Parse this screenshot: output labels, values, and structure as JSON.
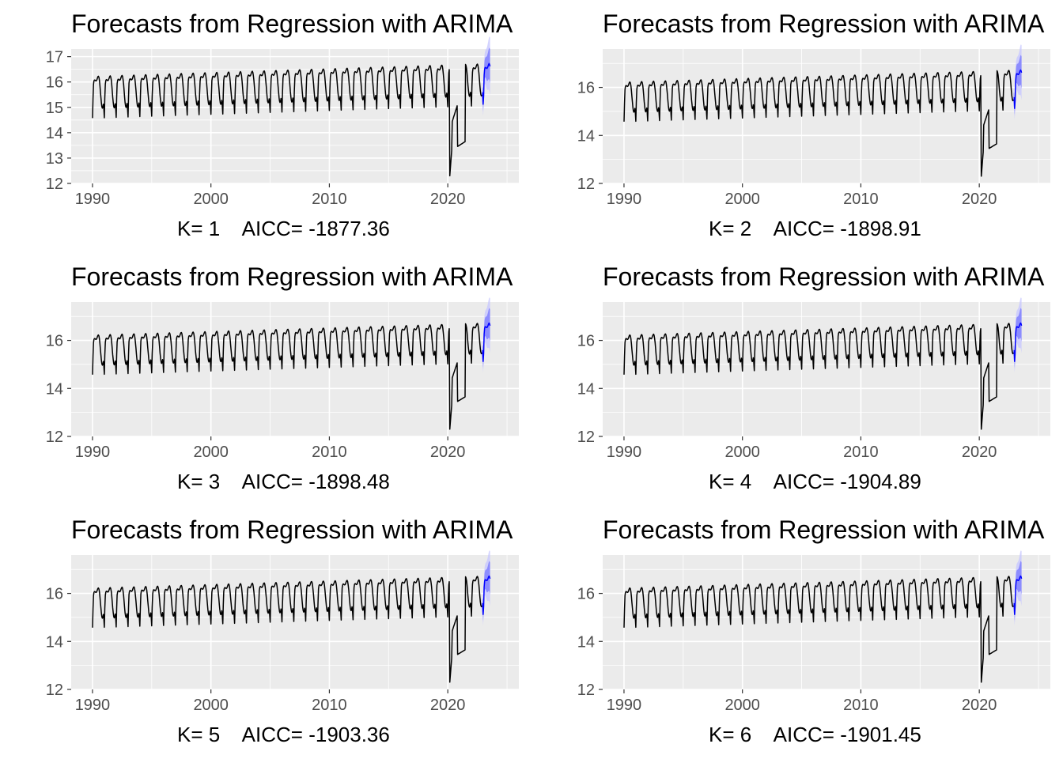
{
  "colors": {
    "panel_bg": "#ebebeb",
    "grid": "#ffffff",
    "series": "#000000",
    "forecast": "#0000ff",
    "interval_80": "#7b7bff",
    "interval_95": "#c8c8ff"
  },
  "chart_data": [
    {
      "type": "line",
      "title": "Forecasts from Regression with ARIMA",
      "caption": "K= 1    AICC= -1877.36",
      "k": 1,
      "aicc": -1877.36,
      "x_range": [
        1990,
        2023.6
      ],
      "xlim": [
        1988.2,
        2026.0
      ],
      "x_ticks": [
        1990,
        2000,
        2010,
        2020
      ],
      "ylim": [
        12.0,
        17.3
      ],
      "y_ticks": [
        12,
        13,
        14,
        15,
        16,
        17
      ],
      "grid": true,
      "history_end": 2022.9,
      "forecast_start": 2022.9,
      "forecast_end": 2023.6
    },
    {
      "type": "line",
      "title": "Forecasts from Regression with ARIMA",
      "caption": "K= 2    AICC= -1898.91",
      "k": 2,
      "aicc": -1898.91,
      "x_range": [
        1990,
        2023.6
      ],
      "xlim": [
        1988.2,
        2026.0
      ],
      "x_ticks": [
        1990,
        2000,
        2010,
        2020
      ],
      "ylim": [
        12.0,
        17.6
      ],
      "y_ticks": [
        12,
        14,
        16
      ],
      "grid": true,
      "history_end": 2022.9,
      "forecast_start": 2022.9,
      "forecast_end": 2023.6
    },
    {
      "type": "line",
      "title": "Forecasts from Regression with ARIMA",
      "caption": "K= 3    AICC= -1898.48",
      "k": 3,
      "aicc": -1898.48,
      "x_range": [
        1990,
        2023.6
      ],
      "xlim": [
        1988.2,
        2026.0
      ],
      "x_ticks": [
        1990,
        2000,
        2010,
        2020
      ],
      "ylim": [
        12.0,
        17.6
      ],
      "y_ticks": [
        12,
        14,
        16
      ],
      "grid": true,
      "history_end": 2022.9,
      "forecast_start": 2022.9,
      "forecast_end": 2023.6
    },
    {
      "type": "line",
      "title": "Forecasts from Regression with ARIMA",
      "caption": "K= 4    AICC= -1904.89",
      "k": 4,
      "aicc": -1904.89,
      "x_range": [
        1990,
        2023.6
      ],
      "xlim": [
        1988.2,
        2026.0
      ],
      "x_ticks": [
        1990,
        2000,
        2010,
        2020
      ],
      "ylim": [
        12.0,
        17.6
      ],
      "y_ticks": [
        12,
        14,
        16
      ],
      "grid": true,
      "history_end": 2022.9,
      "forecast_start": 2022.9,
      "forecast_end": 2023.6
    },
    {
      "type": "line",
      "title": "Forecasts from Regression with ARIMA",
      "caption": "K= 5    AICC= -1903.36",
      "k": 5,
      "aicc": -1903.36,
      "x_range": [
        1990,
        2023.6
      ],
      "xlim": [
        1988.2,
        2026.0
      ],
      "x_ticks": [
        1990,
        2000,
        2010,
        2020
      ],
      "ylim": [
        12.0,
        17.6
      ],
      "y_ticks": [
        12,
        14,
        16
      ],
      "grid": true,
      "history_end": 2022.9,
      "forecast_start": 2022.9,
      "forecast_end": 2023.6
    },
    {
      "type": "line",
      "title": "Forecasts from Regression with ARIMA",
      "caption": "K= 6    AICC= -1901.45",
      "k": 6,
      "aicc": -1901.45,
      "x_range": [
        1990,
        2023.6
      ],
      "xlim": [
        1988.2,
        2026.0
      ],
      "x_ticks": [
        1990,
        2000,
        2010,
        2020
      ],
      "ylim": [
        12.0,
        17.6
      ],
      "y_ticks": [
        12,
        14,
        16
      ],
      "grid": true,
      "history_end": 2022.9,
      "forecast_start": 2022.9,
      "forecast_end": 2023.6
    }
  ]
}
